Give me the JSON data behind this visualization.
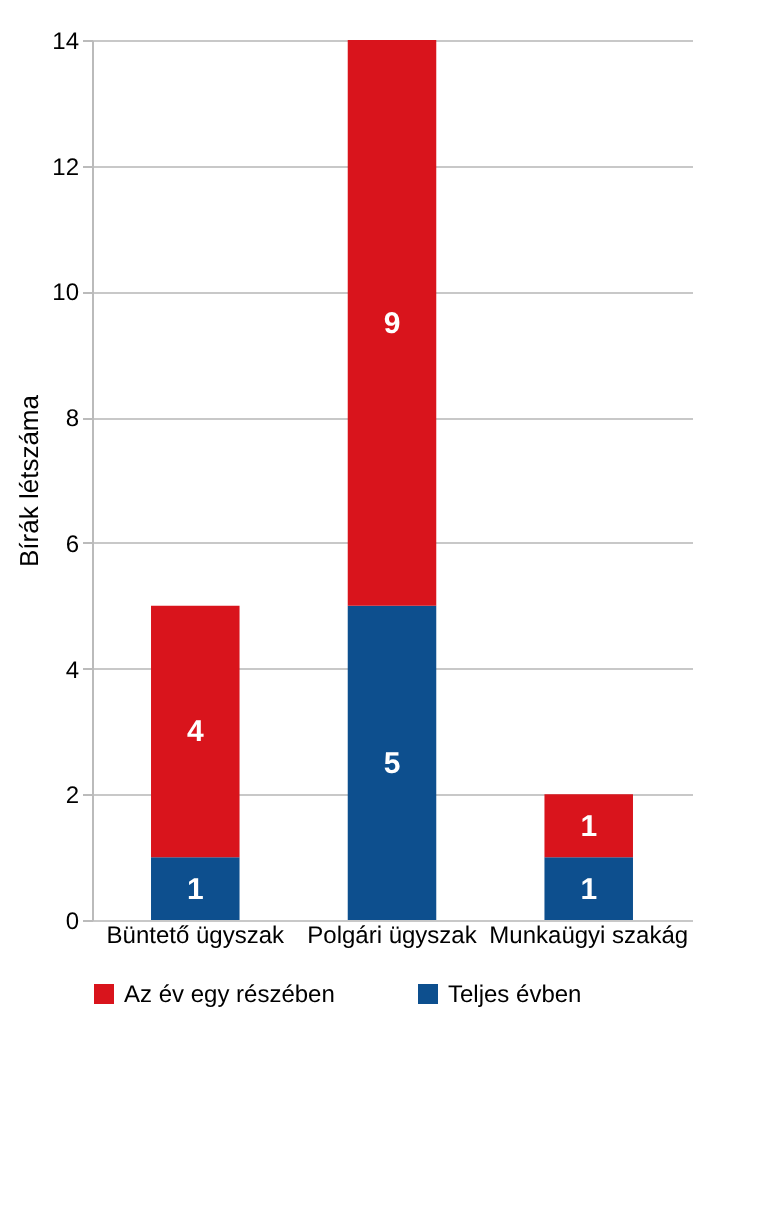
{
  "chart_data": {
    "type": "bar",
    "stacked": true,
    "ylabel": "Bírák létszáma",
    "categories": [
      "Büntető ügyszak",
      "Polgári ügyszak",
      "Munkaügyi szakág"
    ],
    "series": [
      {
        "name": "Teljes évben",
        "color": "#0d4f8e",
        "values": [
          1,
          5,
          1
        ]
      },
      {
        "name": "Az év egy részében",
        "color": "#d9141c",
        "values": [
          4,
          9,
          1
        ]
      }
    ],
    "ylim": [
      0,
      14
    ],
    "yticks": [
      0,
      2,
      4,
      6,
      8,
      10,
      12,
      14
    ],
    "grid": true,
    "legend": "bottom",
    "data_labels": true
  }
}
